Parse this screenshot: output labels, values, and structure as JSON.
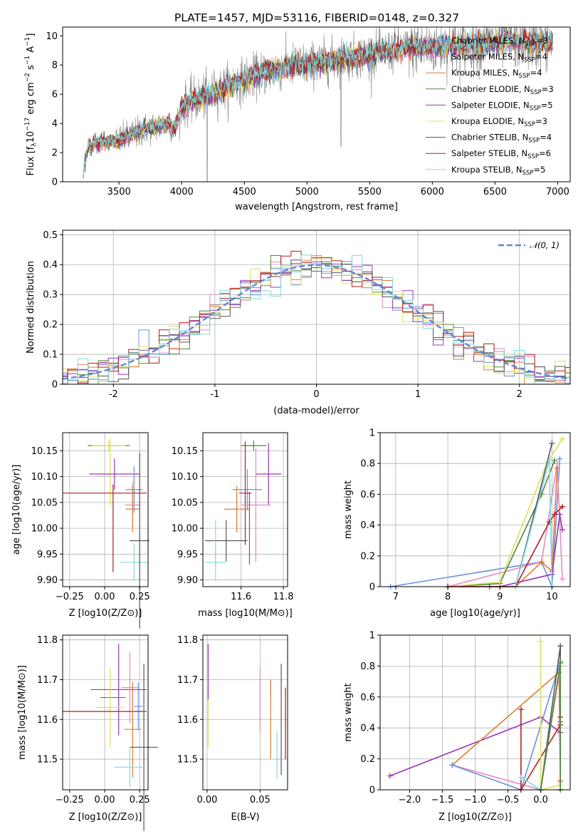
{
  "chart_data": [
    {
      "id": "spectrum",
      "type": "line",
      "title": "PLATE=1457, MJD=53116, FIBERID=0148, z=0.327",
      "xlabel": "wavelength [Angstrom, rest frame]",
      "ylabel": "Flux [f_λ 10^-17 erg cm^-2 s^-1 A^-1]",
      "xlim": [
        3050,
        7100
      ],
      "ylim": [
        0,
        10.6
      ],
      "xticks": [
        3500,
        4000,
        4500,
        5000,
        5500,
        6000,
        6500,
        7000
      ],
      "yticks": [
        0,
        2,
        4,
        6,
        8,
        10
      ],
      "grid": false,
      "legend_position": "top-right",
      "data_continuum": {
        "x": [
          3210,
          3250,
          3300,
          3400,
          3500,
          3550,
          3600,
          3650,
          3700,
          3750,
          3800,
          3850,
          3900,
          3950,
          4000,
          4100,
          4200,
          4300,
          4400,
          4500,
          4600,
          4700,
          4800,
          4900,
          5000,
          5100,
          5200,
          5300,
          5400,
          5500,
          5600,
          5700,
          5800,
          5900,
          6000,
          6100,
          6200,
          6300,
          6400,
          6500,
          6600,
          6700,
          6800,
          6900
        ],
        "y": [
          0.2,
          2.3,
          2.6,
          2.7,
          2.8,
          3.0,
          3.2,
          3.4,
          3.6,
          3.7,
          3.8,
          3.9,
          4.0,
          3.6,
          5.2,
          5.6,
          5.9,
          6.3,
          6.7,
          7.0,
          7.3,
          7.6,
          7.8,
          8.0,
          8.0,
          8.2,
          8.3,
          8.5,
          8.6,
          8.7,
          8.9,
          9.0,
          9.1,
          9.2,
          9.2,
          9.3,
          9.2,
          9.4,
          9.5,
          9.5,
          9.7,
          9.6,
          9.5,
          9.5
        ]
      },
      "series": [
        {
          "name": "Chabrier MILES, N_SSP=3",
          "color": "#6a8fe0"
        },
        {
          "name": "Salpeter MILES, N_SSP=4",
          "color": "#e889c0"
        },
        {
          "name": "Kroupa MILES, N_SSP=4",
          "color": "#de7b2b"
        },
        {
          "name": "Chabrier ELODIE, N_SSP=3",
          "color": "#4f8a3e"
        },
        {
          "name": "Salpeter ELODIE, N_SSP=5",
          "color": "#9b35b8"
        },
        {
          "name": "Kroupa ELODIE, N_SSP=3",
          "color": "#dfe05f"
        },
        {
          "name": "Chabrier STELIB, N_SSP=4",
          "color": "#555555"
        },
        {
          "name": "Salpeter STELIB, N_SSP=6",
          "color": "#b01e1e"
        },
        {
          "name": "Kroupa STELIB, N_SSP=5",
          "color": "#7fd8e0"
        }
      ]
    },
    {
      "id": "residuals",
      "type": "histogram",
      "xlabel": "(data-model)/error",
      "ylabel": "Normed distribution",
      "xlim": [
        -2.5,
        2.5
      ],
      "ylim": [
        0,
        0.515
      ],
      "xticks": [
        -2,
        -1,
        0,
        1,
        2
      ],
      "yticks": [
        0.0,
        0.1,
        0.2,
        0.3,
        0.4,
        0.5
      ],
      "grid": true,
      "legend": "N(0,1)",
      "legend_position": "top-right",
      "reference_curve": {
        "name": "N(0,1)",
        "color": "#5f87d6",
        "style": "dashed"
      },
      "bin_width": 0.1
    },
    {
      "id": "age-vs-Z",
      "type": "errorbar",
      "xlabel": "Z [log10(Z/Z⊙)]",
      "ylabel": "age [log10(age/yr)]",
      "xlim": [
        -0.3,
        0.31
      ],
      "ylim": [
        9.887,
        10.185
      ],
      "xticks": [
        -0.25,
        0.0,
        0.25
      ],
      "xtick_labels": [
        "−0.25",
        "0.00",
        "0.25"
      ],
      "yticks": [
        9.9,
        9.95,
        10.0,
        10.05,
        10.1,
        10.15
      ],
      "ytick_labels": [
        "9.90",
        "9.95",
        "10.00",
        "10.05",
        "10.10",
        "10.15"
      ],
      "points": [
        {
          "x": 0.03,
          "y": 10.16,
          "xerr": 0.15,
          "yerr": 0.01,
          "color": "#4f8a3e"
        },
        {
          "x": 0.03,
          "y": 10.16,
          "xerr": 0.12,
          "yerr": 0.01,
          "color": "#dfe05f"
        },
        {
          "x": 0.04,
          "y": 10.11,
          "xerr": 0.005,
          "yerr": 0.065,
          "color": "#dfe05f"
        },
        {
          "x": 0.07,
          "y": 10.105,
          "xerr": 0.18,
          "yerr": 0.03,
          "color": "#9b35b8"
        },
        {
          "x": 0.21,
          "y": 10.075,
          "xerr": 0.06,
          "yerr": 0.045,
          "color": "#6a8fe0"
        },
        {
          "x": 0.0,
          "y": 10.068,
          "xerr": 0.3,
          "yerr": 0.0,
          "color": "#b01e1e"
        },
        {
          "x": 0.06,
          "y": 10.0,
          "xerr": 0.0,
          "yerr": 0.085,
          "color": "#b01e1e"
        },
        {
          "x": 0.2,
          "y": 10.045,
          "xerr": 0.055,
          "yerr": 0.045,
          "color": "#e889c0"
        },
        {
          "x": 0.2,
          "y": 10.037,
          "xerr": 0.05,
          "yerr": 0.045,
          "color": "#de7b2b"
        },
        {
          "x": 0.21,
          "y": 9.934,
          "xerr": 0.1,
          "yerr": 0.035,
          "color": "#7fd8e0"
        },
        {
          "x": 0.25,
          "y": 9.976,
          "xerr": 0.07,
          "yerr": 0.17,
          "color": "#555555"
        }
      ]
    },
    {
      "id": "age-vs-mass",
      "type": "errorbar",
      "xlabel": "mass [log10(M/M⊙)]",
      "ylabel": "",
      "xlim": [
        11.42,
        11.82
      ],
      "ylim": [
        9.887,
        10.185
      ],
      "xticks": [
        11.6,
        11.8
      ],
      "yticks": [
        9.9,
        9.95,
        10.0,
        10.05,
        10.1,
        10.15
      ],
      "ytick_labels": [
        "9.90",
        "9.95",
        "10.00",
        "10.05",
        "10.10",
        "10.15"
      ],
      "points": [
        {
          "x": 11.66,
          "y": 10.16,
          "xerr": 0.06,
          "yerr": 0.01,
          "color": "#4f8a3e"
        },
        {
          "x": 11.73,
          "y": 10.105,
          "xerr": 0.06,
          "yerr": 0.06,
          "color": "#9b35b8"
        },
        {
          "x": 11.63,
          "y": 10.075,
          "xerr": 0.07,
          "yerr": 0.04,
          "color": "#6a8fe0"
        },
        {
          "x": 11.62,
          "y": 10.068,
          "xerr": 0.03,
          "yerr": 0.1,
          "color": "#b01e1e"
        },
        {
          "x": 11.67,
          "y": 10.045,
          "xerr": 0.07,
          "yerr": 0.11,
          "color": "#e889c0"
        },
        {
          "x": 11.58,
          "y": 10.037,
          "xerr": 0.06,
          "yerr": 0.045,
          "color": "#de7b2b"
        },
        {
          "x": 11.64,
          "y": 10.0,
          "xerr": 0.0,
          "yerr": 0.07,
          "color": "#9b35b8"
        },
        {
          "x": 11.53,
          "y": 9.976,
          "xerr": 0.1,
          "yerr": 0.04,
          "color": "#555555"
        },
        {
          "x": 11.48,
          "y": 9.934,
          "xerr": 0.05,
          "yerr": 0.035,
          "color": "#7fd8e0"
        },
        {
          "x": 11.48,
          "y": 9.97,
          "xerr": 0.0,
          "yerr": 0.045,
          "color": "#7fd8e0"
        }
      ]
    },
    {
      "id": "weight-vs-age",
      "type": "line",
      "xlabel": "age [log10(age/yr)]",
      "ylabel": "mass weight",
      "xlim": [
        6.7,
        10.35
      ],
      "ylim": [
        0,
        1.0
      ],
      "xticks": [
        7,
        8,
        9,
        10
      ],
      "yticks": [
        0.0,
        0.2,
        0.4,
        0.6,
        0.8,
        1.0
      ],
      "grid": true,
      "series": [
        {
          "color": "#6a8fe0",
          "x": [
            6.9,
            9.8,
            10.0,
            10.15
          ],
          "y": [
            0.0,
            0.16,
            0.0,
            0.83
          ]
        },
        {
          "color": "#e889c0",
          "x": [
            8.0,
            9.8,
            10.1,
            10.2
          ],
          "y": [
            0.0,
            0.16,
            0.8,
            0.05
          ]
        },
        {
          "color": "#de7b2b",
          "x": [
            9.3,
            9.8,
            10.0,
            10.1
          ],
          "y": [
            0.0,
            0.16,
            0.1,
            0.77
          ]
        },
        {
          "color": "#4f8a3e",
          "x": [
            8.0,
            9.0,
            9.8,
            10.05
          ],
          "y": [
            0.0,
            0.02,
            0.6,
            0.82
          ]
        },
        {
          "color": "#9b35b8",
          "x": [
            8.0,
            9.0,
            10.0,
            10.15,
            10.2
          ],
          "y": [
            0.0,
            0.0,
            0.08,
            0.47,
            0.37
          ]
        },
        {
          "color": "#dfe05f",
          "x": [
            8.0,
            9.0,
            9.9,
            10.2
          ],
          "y": [
            0.0,
            0.03,
            0.8,
            0.96
          ]
        },
        {
          "color": "#555555",
          "x": [
            8.8,
            9.3,
            10.0
          ],
          "y": [
            0.0,
            0.0,
            0.93
          ]
        },
        {
          "color": "#b01e1e",
          "x": [
            8.0,
            9.3,
            9.95,
            10.05,
            10.2
          ],
          "y": [
            0.0,
            0.0,
            0.42,
            0.47,
            0.52
          ]
        },
        {
          "color": "#7fd8e0",
          "x": [
            9.3,
            9.95,
            10.0
          ],
          "y": [
            0.0,
            0.82,
            0.0
          ]
        }
      ]
    },
    {
      "id": "mass-vs-Z",
      "type": "errorbar",
      "xlabel": "Z [log10(Z/Z⊙)]",
      "ylabel": "mass [log10(M/M⊙)]",
      "xlim": [
        -0.3,
        0.31
      ],
      "ylim": [
        11.423,
        11.812
      ],
      "xticks": [
        -0.25,
        0.0,
        0.25
      ],
      "xtick_labels": [
        "−0.25",
        "0.00",
        "0.25"
      ],
      "yticks": [
        11.5,
        11.6,
        11.7,
        11.8
      ],
      "points": [
        {
          "x": 0.1,
          "y": 11.675,
          "xerr": 0.2,
          "yerr": 0.115,
          "color": "#9b35b8"
        },
        {
          "x": 0.06,
          "y": 11.655,
          "xerr": 0.09,
          "yerr": 0.0,
          "color": "#4f8a3e"
        },
        {
          "x": 0.18,
          "y": 11.68,
          "xerr": 0.06,
          "yerr": 0.09,
          "color": "#e889c0"
        },
        {
          "x": 0.04,
          "y": 11.63,
          "xerr": 0.1,
          "yerr": 0.1,
          "color": "#dfe05f"
        },
        {
          "x": 0.24,
          "y": 11.633,
          "xerr": 0.03,
          "yerr": 0.06,
          "color": "#6a8fe0"
        },
        {
          "x": 0.0,
          "y": 11.62,
          "xerr": 0.3,
          "yerr": 0.0,
          "color": "#b01e1e"
        },
        {
          "x": 0.2,
          "y": 11.575,
          "xerr": 0.06,
          "yerr": 0.12,
          "color": "#de7b2b"
        },
        {
          "x": 0.28,
          "y": 11.53,
          "xerr": 0.1,
          "yerr": 0.21,
          "color": "#555555"
        },
        {
          "x": 0.18,
          "y": 11.48,
          "xerr": 0.11,
          "yerr": 0.05,
          "color": "#7fd8e0"
        }
      ]
    },
    {
      "id": "mass-vs-EBV",
      "type": "errorbar",
      "xlabel": "E(B-V)",
      "ylabel": "",
      "xlim": [
        -0.004,
        0.076
      ],
      "ylim": [
        11.423,
        11.812
      ],
      "xticks": [
        0.0,
        0.05
      ],
      "xtick_labels": [
        "0.00",
        "0.05"
      ],
      "yticks": [
        11.5,
        11.6,
        11.7,
        11.8
      ],
      "points": [
        {
          "x": 0.001,
          "y": 11.72,
          "xerr": 0.0,
          "yerr": 0.07,
          "color": "#9b35b8"
        },
        {
          "x": 0.001,
          "y": 11.59,
          "xerr": 0.0,
          "yerr": 0.06,
          "color": "#dfe05f"
        },
        {
          "x": 0.05,
          "y": 11.65,
          "xerr": 0.0,
          "yerr": 0.08,
          "color": "#e889c0"
        },
        {
          "x": 0.06,
          "y": 11.68,
          "xerr": 0.0,
          "yerr": 0.02,
          "color": "#6a8fe0"
        },
        {
          "x": 0.06,
          "y": 11.6,
          "xerr": 0.0,
          "yerr": 0.1,
          "color": "#de7b2b"
        },
        {
          "x": 0.066,
          "y": 11.51,
          "xerr": 0.0,
          "yerr": 0.06,
          "color": "#7fd8e0"
        },
        {
          "x": 0.07,
          "y": 11.6,
          "xerr": 0.0,
          "yerr": 0.14,
          "color": "#555555"
        },
        {
          "x": 0.074,
          "y": 11.59,
          "xerr": 0.0,
          "yerr": 0.09,
          "color": "#b01e1e"
        }
      ]
    },
    {
      "id": "weight-vs-Z",
      "type": "line",
      "xlabel": "Z [log10(Z/Z⊙)]",
      "ylabel": "mass weight",
      "xlim": [
        -2.45,
        0.45
      ],
      "ylim": [
        0,
        1.0
      ],
      "xticks": [
        -2.0,
        -1.5,
        -1.0,
        -0.5,
        0.0
      ],
      "xtick_labels": [
        "−2.0",
        "−1.5",
        "−1.0",
        "−0.5",
        "0.0"
      ],
      "yticks": [
        0.0,
        0.2,
        0.4,
        0.6,
        0.8,
        1.0
      ],
      "grid": true,
      "series": [
        {
          "color": "#9b35b8",
          "x": [
            -2.3,
            0.0,
            0.3,
            0.3
          ],
          "y": [
            0.09,
            0.47,
            0.37,
            0.44
          ]
        },
        {
          "color": "#de7b2b",
          "x": [
            -1.35,
            0.28,
            0.3,
            0.3
          ],
          "y": [
            0.16,
            0.76,
            0.06,
            0.0
          ]
        },
        {
          "color": "#e889c0",
          "x": [
            -1.35,
            0.0,
            0.3,
            0.3
          ],
          "y": [
            0.16,
            0.0,
            0.8,
            0.05
          ]
        },
        {
          "color": "#6a8fe0",
          "x": [
            -1.35,
            -0.3,
            0.3
          ],
          "y": [
            0.16,
            0.0,
            0.83
          ]
        },
        {
          "color": "#b01e1e",
          "x": [
            -0.3,
            -0.3,
            0.3,
            0.3
          ],
          "y": [
            0.52,
            0.0,
            0.42,
            0.47
          ]
        },
        {
          "color": "#dfe05f",
          "x": [
            0.0,
            0.0,
            0.3
          ],
          "y": [
            0.96,
            0.0,
            0.03
          ]
        },
        {
          "color": "#555555",
          "x": [
            0.0,
            0.3,
            0.3
          ],
          "y": [
            0.0,
            0.93,
            0.0
          ]
        },
        {
          "color": "#7fd8e0",
          "x": [
            -0.3,
            0.0,
            0.3
          ],
          "y": [
            0.08,
            0.0,
            0.82
          ]
        },
        {
          "color": "#4f8a3e",
          "x": [
            0.0,
            0.3,
            0.3
          ],
          "y": [
            0.0,
            0.82,
            0.0
          ]
        }
      ]
    }
  ]
}
